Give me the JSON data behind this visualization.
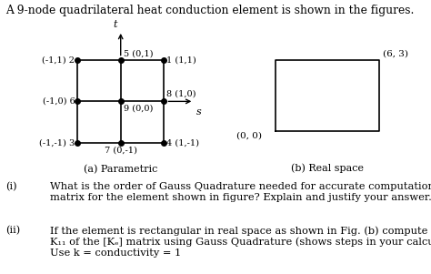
{
  "title": "A 9-node quadrilateral heat conduction element is shown in the figures.",
  "title_fontsize": 8.8,
  "fig_bg": "#ffffff",
  "label_a": "(a) Parametric",
  "label_b": "(b) Real space",
  "axis_label_t": "t",
  "axis_label_s": "s",
  "font_size_node": 7.0,
  "font_size_label": 8.0,
  "font_size_q": 8.2,
  "q_i_roman": "(i)",
  "q_i_text1": "What is the order of Gauss Quadrature needed for accurate computation of [K",
  "q_i_text2": "]",
  "q_i_text3": "matrix for the element shown in figure? Explain and justify your answer.",
  "q_ii_roman": "(ii)",
  "q_ii_text1": "If the element is rectangular in real space as shown in Fig. (b) compute the terms",
  "q_ii_text2": "K",
  "q_ii_text3": " of the [K",
  "q_ii_text4": "] matrix using Gauss Quadrature (shows steps in your calculations).",
  "q_ii_text5": "Use k = conductivity = 1"
}
